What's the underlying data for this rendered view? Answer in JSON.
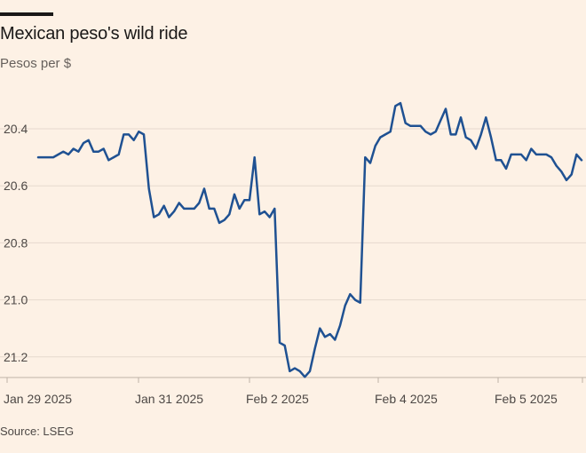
{
  "title": "Mexican peso's wild ride",
  "subtitle": "Pesos per $",
  "source": "Source: LSEG",
  "chart_data": {
    "type": "line",
    "title": "Mexican peso's wild ride",
    "ylabel": "Pesos per $",
    "xlabel": "",
    "y_inverted": true,
    "ylim": [
      21.28,
      20.3
    ],
    "yticks": [
      20.4,
      20.6,
      20.8,
      21.0,
      21.2
    ],
    "ytick_labels": [
      "20.4",
      "20.6",
      "20.8",
      "21.0",
      "21.2"
    ],
    "x_ticks": [
      {
        "label": "Jan 29 2025",
        "index": 0
      },
      {
        "label": "Jan 31 2025",
        "index": 21
      },
      {
        "label": "Feb 2 2025",
        "index": 40
      },
      {
        "label": "Feb 4 2025",
        "index": 66
      },
      {
        "label": "Feb 5 2025",
        "index": 85
      },
      {
        "label": "",
        "index": 95
      }
    ],
    "grid": true,
    "line_color": "#1f5192",
    "series": [
      {
        "name": "",
        "values": [
          20.5,
          20.5,
          20.5,
          20.5,
          20.49,
          20.48,
          20.49,
          20.47,
          20.48,
          20.45,
          20.44,
          20.48,
          20.48,
          20.47,
          20.51,
          20.5,
          20.49,
          20.42,
          20.42,
          20.44,
          20.41,
          20.42,
          20.61,
          20.71,
          20.7,
          20.67,
          20.71,
          20.69,
          20.66,
          20.68,
          20.68,
          20.68,
          20.66,
          20.61,
          20.68,
          20.68,
          20.73,
          20.72,
          20.7,
          20.63,
          20.68,
          20.65,
          20.65,
          20.5,
          20.7,
          20.69,
          20.71,
          20.68,
          21.15,
          21.16,
          21.25,
          21.24,
          21.25,
          21.27,
          21.25,
          21.17,
          21.1,
          21.13,
          21.12,
          21.14,
          21.09,
          21.02,
          20.98,
          21.0,
          21.01,
          20.5,
          20.52,
          20.46,
          20.43,
          20.42,
          20.41,
          20.32,
          20.31,
          20.38,
          20.39,
          20.39,
          20.39,
          20.41,
          20.42,
          20.41,
          20.37,
          20.33,
          20.42,
          20.42,
          20.36,
          20.43,
          20.44,
          20.47,
          20.42,
          20.36,
          20.43,
          20.51,
          20.51,
          20.54,
          20.49,
          20.49,
          20.49,
          20.51,
          20.47,
          20.49,
          20.49,
          20.49,
          20.5,
          20.53,
          20.55,
          20.58,
          20.56,
          20.49,
          20.51
        ]
      }
    ]
  }
}
